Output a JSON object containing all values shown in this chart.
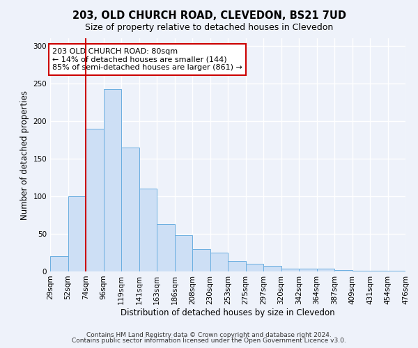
{
  "title": "203, OLD CHURCH ROAD, CLEVEDON, BS21 7UD",
  "subtitle": "Size of property relative to detached houses in Clevedon",
  "xlabel": "Distribution of detached houses by size in Clevedon",
  "ylabel": "Number of detached properties",
  "bar_values": [
    20,
    100,
    190,
    242,
    165,
    110,
    63,
    48,
    30,
    25,
    14,
    10,
    7,
    4,
    4,
    4,
    2,
    1,
    1,
    1
  ],
  "bin_labels": [
    "29sqm",
    "52sqm",
    "74sqm",
    "96sqm",
    "119sqm",
    "141sqm",
    "163sqm",
    "186sqm",
    "208sqm",
    "230sqm",
    "253sqm",
    "275sqm",
    "297sqm",
    "320sqm",
    "342sqm",
    "364sqm",
    "387sqm",
    "409sqm",
    "431sqm",
    "454sqm",
    "476sqm"
  ],
  "bar_color": "#cddff5",
  "bar_edge_color": "#6aaee0",
  "bar_edge_width": 0.7,
  "annotation_box_text": "203 OLD CHURCH ROAD: 80sqm\n← 14% of detached houses are smaller (144)\n85% of semi-detached houses are larger (861) →",
  "vline_x": 2.0,
  "vline_color": "#cc0000",
  "ylim": [
    0,
    310
  ],
  "yticks": [
    0,
    50,
    100,
    150,
    200,
    250,
    300
  ],
  "footer_line1": "Contains HM Land Registry data © Crown copyright and database right 2024.",
  "footer_line2": "Contains public sector information licensed under the Open Government Licence v3.0.",
  "background_color": "#eef2fa",
  "plot_bg_color": "#eef2fa",
  "grid_color": "#ffffff",
  "title_fontsize": 10.5,
  "subtitle_fontsize": 9,
  "axis_label_fontsize": 8.5,
  "tick_fontsize": 7.5,
  "footer_fontsize": 6.5,
  "ann_fontsize": 8
}
